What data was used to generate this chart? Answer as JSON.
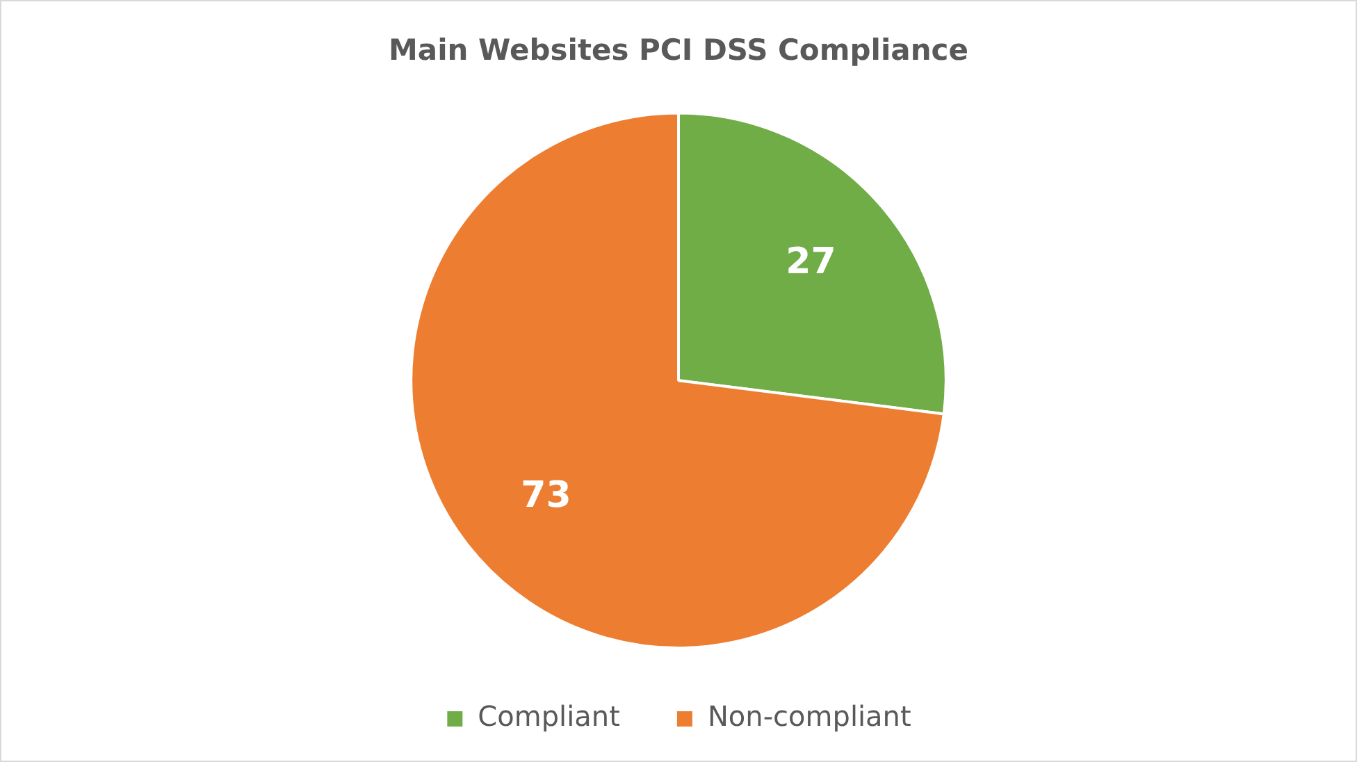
{
  "chart_data": {
    "type": "pie",
    "title": "Main Websites PCI DSS Compliance",
    "categories": [
      "Compliant",
      "Non-compliant"
    ],
    "values": [
      27,
      73
    ],
    "colors": [
      "#70ad47",
      "#ed7d31"
    ],
    "data_labels": true,
    "legend": "bottom"
  }
}
